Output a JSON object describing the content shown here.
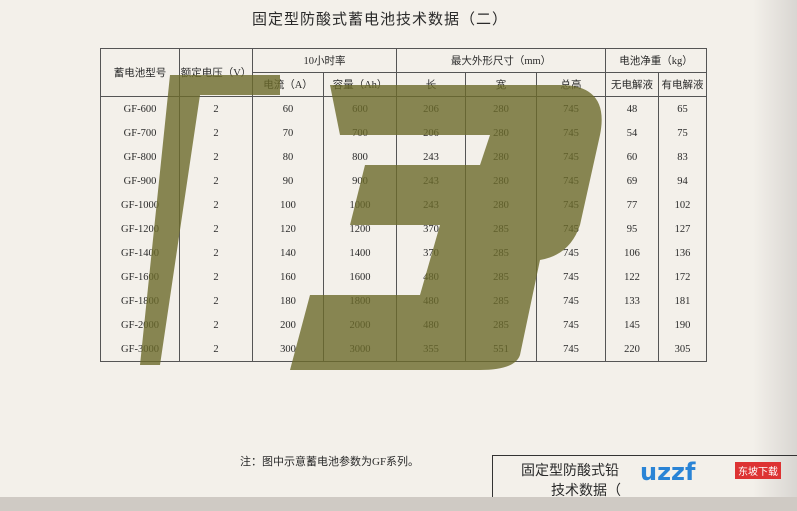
{
  "title": "固定型防酸式蓄电池技术数据（二）",
  "table": {
    "headers": {
      "model": "蓄电池型号",
      "voltage": "额定电压（V）",
      "rate": "10小时率",
      "current": "电流（A）",
      "capacity": "容量（Ah）",
      "size": "最大外形尺寸（mm）",
      "length": "长",
      "width": "宽",
      "height": "总高",
      "weight": "电池净重（kg）",
      "dry": "无电解液",
      "wet": "有电解液"
    },
    "rows": [
      [
        "GF-600",
        "2",
        "60",
        "600",
        "206",
        "280",
        "745",
        "48",
        "65"
      ],
      [
        "GF-700",
        "2",
        "70",
        "700",
        "206",
        "280",
        "745",
        "54",
        "75"
      ],
      [
        "GF-800",
        "2",
        "80",
        "800",
        "243",
        "280",
        "745",
        "60",
        "83"
      ],
      [
        "GF-900",
        "2",
        "90",
        "900",
        "243",
        "280",
        "745",
        "69",
        "94"
      ],
      [
        "GF-1000",
        "2",
        "100",
        "1000",
        "243",
        "280",
        "745",
        "77",
        "102"
      ],
      [
        "GF-1200",
        "2",
        "120",
        "1200",
        "370",
        "285",
        "745",
        "95",
        "127"
      ],
      [
        "GF-1400",
        "2",
        "140",
        "1400",
        "370",
        "285",
        "745",
        "106",
        "136"
      ],
      [
        "GF-1600",
        "2",
        "160",
        "1600",
        "480",
        "285",
        "745",
        "122",
        "172"
      ],
      [
        "GF-1800",
        "2",
        "180",
        "1800",
        "480",
        "285",
        "745",
        "133",
        "181"
      ],
      [
        "GF-2000",
        "2",
        "200",
        "2000",
        "480",
        "285",
        "745",
        "145",
        "190"
      ],
      [
        "GF-3000",
        "2",
        "300",
        "3000",
        "355",
        "551",
        "745",
        "220",
        "305"
      ]
    ]
  },
  "note": "注：图中示意蓄电池参数为GF系列。",
  "title_block": {
    "line1": "固定型防酸式铅",
    "line2": "技术数据（"
  },
  "watermark": {
    "logo": "uzzf",
    "site": "东坡下载"
  }
}
